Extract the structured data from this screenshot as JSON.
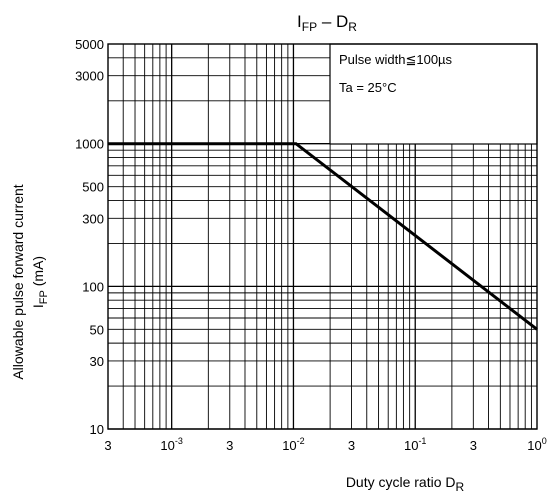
{
  "chart_data": {
    "type": "line",
    "title": {
      "main": "I",
      "sub": "FP",
      "dash": " – D",
      "sub2": "R"
    },
    "xlabel": {
      "main": "Duty cycle ratio   D",
      "sub": "R"
    },
    "ylabel": {
      "line1": "Allowable pulse forward current",
      "line2_main": "I",
      "line2_sub": "FP",
      "line2_unit": "   (mA)"
    },
    "x_scale": "log",
    "y_scale": "log",
    "xlim": [
      0.0003,
      1
    ],
    "ylim": [
      10,
      5000
    ],
    "grid": true,
    "x_ticks": [
      {
        "value": 0.0003,
        "base": "3",
        "exp": ""
      },
      {
        "value": 0.001,
        "base": "10",
        "exp": "-3"
      },
      {
        "value": 0.003,
        "base": "3",
        "exp": ""
      },
      {
        "value": 0.01,
        "base": "10",
        "exp": "-2"
      },
      {
        "value": 0.03,
        "base": "3",
        "exp": ""
      },
      {
        "value": 0.1,
        "base": "10",
        "exp": "-1"
      },
      {
        "value": 0.3,
        "base": "3",
        "exp": ""
      },
      {
        "value": 1,
        "base": "10",
        "exp": "0"
      }
    ],
    "y_ticks": [
      {
        "value": 10,
        "label": "10"
      },
      {
        "value": 30,
        "label": "30"
      },
      {
        "value": 50,
        "label": "50"
      },
      {
        "value": 100,
        "label": "100"
      },
      {
        "value": 300,
        "label": "300"
      },
      {
        "value": 500,
        "label": "500"
      },
      {
        "value": 1000,
        "label": "1000"
      },
      {
        "value": 3000,
        "label": "3000"
      },
      {
        "value": 5000,
        "label": "5000"
      }
    ],
    "annotations": [
      "Pulse width≦100µs",
      "Ta = 25°C"
    ],
    "series": [
      {
        "x": [
          0.0003,
          0.0105,
          1
        ],
        "y": [
          1000,
          1000,
          50
        ]
      }
    ]
  }
}
